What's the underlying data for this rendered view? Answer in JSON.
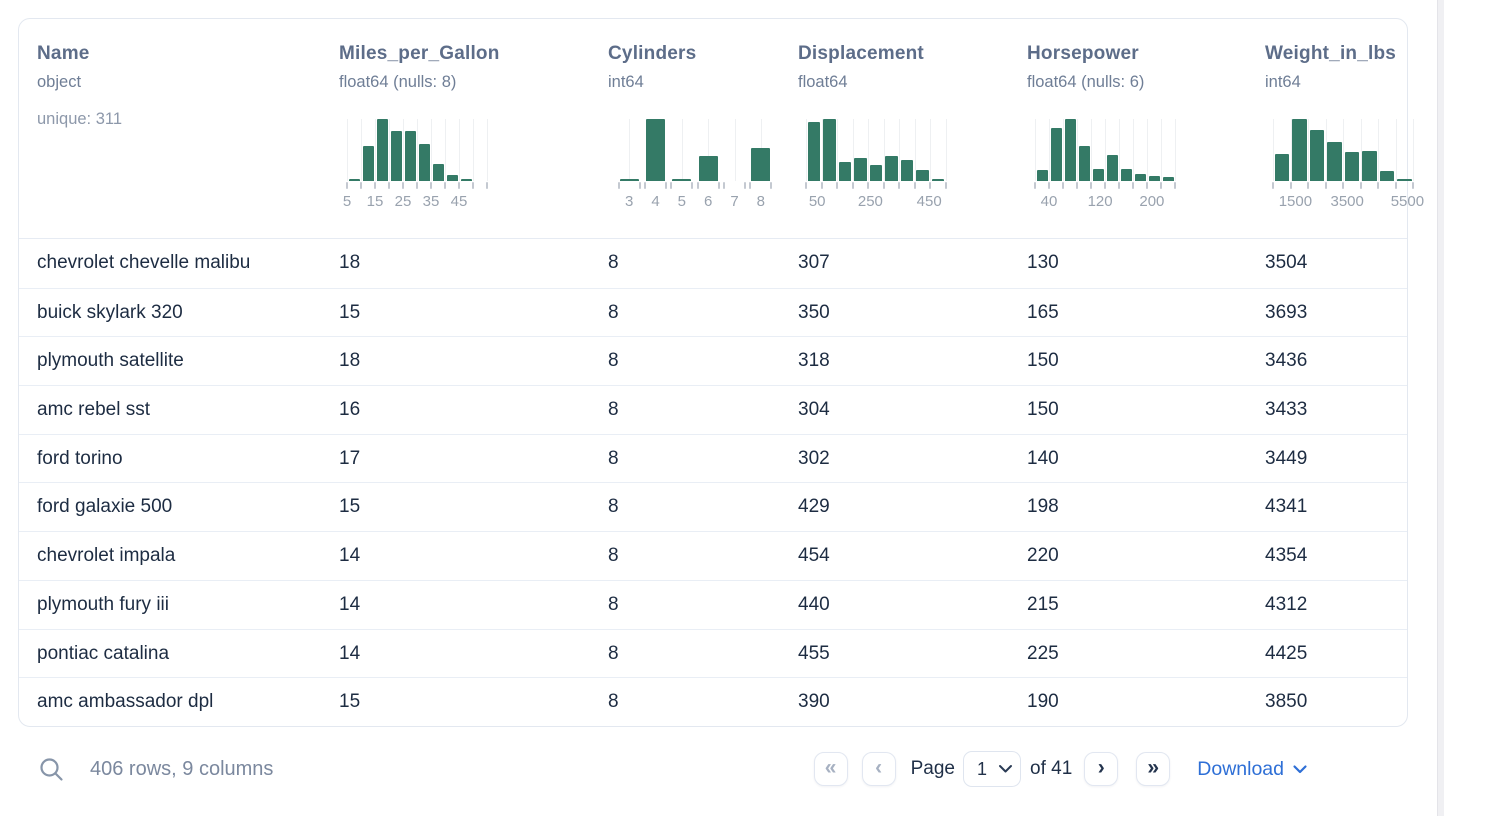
{
  "table": {
    "columns": [
      {
        "name": "Name",
        "type": "object",
        "unique": "unique: 311",
        "histogram": null
      },
      {
        "name": "Miles_per_Gallon",
        "type": "float64 (nulls: 8)",
        "unique": null,
        "histogram": {
          "kind": "continuous",
          "bars": [
            0.03,
            0.57,
            1.0,
            0.8,
            0.8,
            0.6,
            0.28,
            0.1,
            0.03,
            0
          ],
          "labels": [
            {
              "text": "5",
              "frac": 0.0
            },
            {
              "text": "15",
              "frac": 0.2
            },
            {
              "text": "25",
              "frac": 0.4
            },
            {
              "text": "35",
              "frac": 0.6
            },
            {
              "text": "45",
              "frac": 0.8
            }
          ]
        }
      },
      {
        "name": "Cylinders",
        "type": "int64",
        "unique": null,
        "histogram": {
          "kind": "discrete",
          "bars": [
            0.04,
            1.0,
            0.04,
            0.41,
            0,
            0.53
          ],
          "labels": [
            "3",
            "4",
            "5",
            "6",
            "7",
            "8"
          ]
        }
      },
      {
        "name": "Displacement",
        "type": "float64",
        "unique": null,
        "histogram": {
          "kind": "continuous",
          "bars": [
            0.95,
            1.0,
            0.31,
            0.37,
            0.25,
            0.41,
            0.34,
            0.17,
            0.04
          ],
          "labels": [
            {
              "text": "50",
              "frac": 0.08
            },
            {
              "text": "250",
              "frac": 0.46
            },
            {
              "text": "450",
              "frac": 0.88
            }
          ]
        }
      },
      {
        "name": "Horsepower",
        "type": "float64 (nulls: 6)",
        "unique": null,
        "histogram": {
          "kind": "continuous",
          "bars": [
            0.17,
            0.86,
            1.0,
            0.56,
            0.2,
            0.42,
            0.19,
            0.11,
            0.08,
            0.06
          ],
          "labels": [
            {
              "text": "40",
              "frac": 0.1
            },
            {
              "text": "120",
              "frac": 0.465
            },
            {
              "text": "200",
              "frac": 0.835
            }
          ]
        }
      },
      {
        "name": "Weight_in_lbs",
        "type": "int64",
        "unique": null,
        "histogram": {
          "kind": "continuous",
          "bars": [
            0.43,
            1.0,
            0.83,
            0.63,
            0.46,
            0.49,
            0.16,
            0.03
          ],
          "labels": [
            {
              "text": "1500",
              "frac": 0.16
            },
            {
              "text": "3500",
              "frac": 0.53
            },
            {
              "text": "5500",
              "frac": 0.96
            }
          ]
        }
      }
    ],
    "rows": [
      [
        "chevrolet chevelle malibu",
        "18",
        "8",
        "307",
        "130",
        "3504"
      ],
      [
        "buick skylark 320",
        "15",
        "8",
        "350",
        "165",
        "3693"
      ],
      [
        "plymouth satellite",
        "18",
        "8",
        "318",
        "150",
        "3436"
      ],
      [
        "amc rebel sst",
        "16",
        "8",
        "304",
        "150",
        "3433"
      ],
      [
        "ford torino",
        "17",
        "8",
        "302",
        "140",
        "3449"
      ],
      [
        "ford galaxie 500",
        "15",
        "8",
        "429",
        "198",
        "4341"
      ],
      [
        "chevrolet impala",
        "14",
        "8",
        "454",
        "220",
        "4354"
      ],
      [
        "plymouth fury iii",
        "14",
        "8",
        "440",
        "215",
        "4312"
      ],
      [
        "pontiac catalina",
        "14",
        "8",
        "455",
        "225",
        "4425"
      ],
      [
        "amc ambassador dpl",
        "15",
        "8",
        "390",
        "190",
        "3850"
      ]
    ]
  },
  "footer": {
    "summary": "406 rows, 9 columns",
    "page_label": "Page",
    "page_value": "1",
    "of_label": "of 41",
    "download_label": "Download",
    "first_glyph": "«",
    "prev_glyph": "‹",
    "next_glyph": "›",
    "last_glyph": "»"
  },
  "colors": {
    "histogram_bar": "#347a66",
    "gridline": "#eef0f2",
    "download_blue": "#2e6fd6"
  }
}
